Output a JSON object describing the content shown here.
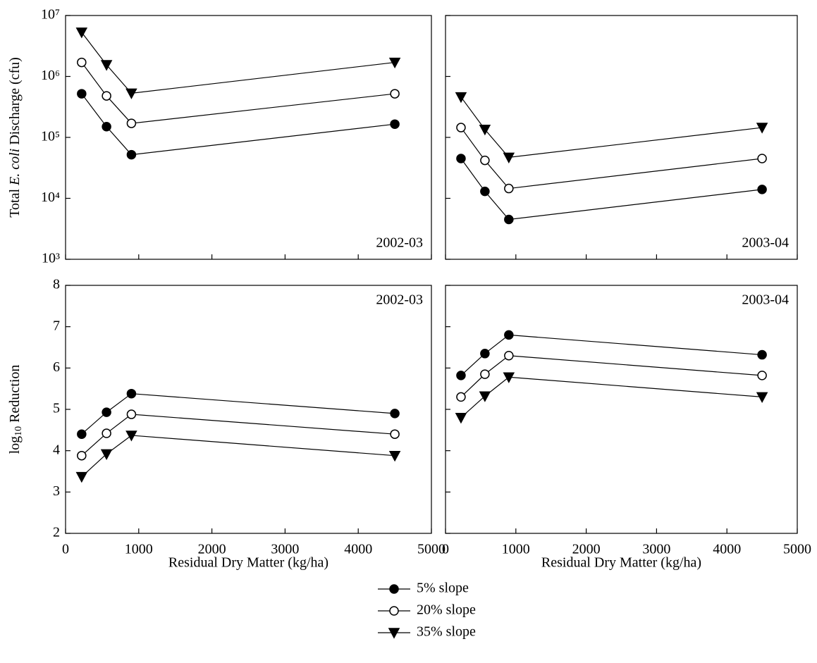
{
  "chart_data": [
    {
      "type": "line",
      "log_y": true,
      "annotation": "2002-03",
      "annotation_corner": "lower right",
      "ylabel": [
        "Total ",
        "E. coli",
        " Discharge (cfu)"
      ],
      "show_xtick_labels": false,
      "show_ytick_labels": true,
      "x": [
        220,
        560,
        900,
        4500
      ],
      "xlim": [
        0,
        5000
      ],
      "xticks": [
        0,
        1000,
        2000,
        3000,
        4000,
        5000
      ],
      "ylim": [
        1000,
        10000000
      ],
      "yticks": [
        {
          "value": 1000,
          "label": "10³"
        },
        {
          "value": 10000,
          "label": "10⁴"
        },
        {
          "value": 100000,
          "label": "10⁵"
        },
        {
          "value": 1000000,
          "label": "10⁶"
        },
        {
          "value": 10000000,
          "label": "10⁷"
        }
      ],
      "series": [
        {
          "name": "5% slope",
          "color": "#000000",
          "marker": "circle",
          "fill": "#000000",
          "values": [
            520000,
            150000,
            52000,
            165000
          ]
        },
        {
          "name": "20% slope",
          "color": "#000000",
          "marker": "circle",
          "fill": "#ffffff",
          "values": [
            1700000,
            480000,
            170000,
            520000
          ]
        },
        {
          "name": "35% slope",
          "color": "#000000",
          "marker": "triangle-down",
          "fill": "#000000",
          "values": [
            5300000,
            1550000,
            530000,
            1700000
          ]
        }
      ]
    },
    {
      "type": "line",
      "log_y": true,
      "annotation": "2003-04",
      "annotation_corner": "lower right",
      "show_xtick_labels": false,
      "show_ytick_labels": false,
      "x": [
        220,
        560,
        900,
        4500
      ],
      "xlim": [
        0,
        5000
      ],
      "xticks": [
        0,
        1000,
        2000,
        3000,
        4000,
        5000
      ],
      "ylim": [
        1000,
        10000000
      ],
      "yticks": [
        1000,
        10000,
        100000,
        1000000,
        10000000
      ],
      "series": [
        {
          "color": "#000000",
          "marker": "circle",
          "fill": "#000000",
          "values": [
            45000,
            13000,
            4500,
            14000
          ]
        },
        {
          "color": "#000000",
          "marker": "circle",
          "fill": "#ffffff",
          "values": [
            145000,
            42000,
            14500,
            45000
          ]
        },
        {
          "color": "#000000",
          "marker": "triangle-down",
          "fill": "#000000",
          "values": [
            460000,
            135000,
            47000,
            145000
          ]
        }
      ]
    },
    {
      "type": "line",
      "log_y": false,
      "annotation": "2002-03",
      "annotation_corner": "upper right",
      "ylabel": [
        "log",
        "10",
        " Reduction"
      ],
      "xlabel": "Residual Dry Matter (kg/ha)",
      "show_xtick_labels": true,
      "show_ytick_labels": true,
      "x": [
        220,
        560,
        900,
        4500
      ],
      "xlim": [
        0,
        5000
      ],
      "xticks": [
        0,
        1000,
        2000,
        3000,
        4000,
        5000
      ],
      "ylim": [
        2,
        8
      ],
      "yticks": [
        2,
        3,
        4,
        5,
        6,
        7,
        8
      ],
      "series": [
        {
          "color": "#000000",
          "marker": "circle",
          "fill": "#000000",
          "values": [
            4.4,
            4.93,
            5.38,
            4.9
          ]
        },
        {
          "color": "#000000",
          "marker": "circle",
          "fill": "#ffffff",
          "values": [
            3.88,
            4.42,
            4.88,
            4.4
          ]
        },
        {
          "color": "#000000",
          "marker": "triangle-down",
          "fill": "#000000",
          "values": [
            3.37,
            3.92,
            4.37,
            3.88
          ]
        }
      ]
    },
    {
      "type": "line",
      "log_y": false,
      "annotation": "2003-04",
      "annotation_corner": "upper right",
      "xlabel": "Residual Dry Matter (kg/ha)",
      "show_xtick_labels": true,
      "show_ytick_labels": false,
      "x": [
        220,
        560,
        900,
        4500
      ],
      "xlim": [
        0,
        5000
      ],
      "xticks": [
        0,
        1000,
        2000,
        3000,
        4000,
        5000
      ],
      "ylim": [
        2,
        8
      ],
      "yticks": [
        2,
        3,
        4,
        5,
        6,
        7,
        8
      ],
      "series": [
        {
          "color": "#000000",
          "marker": "circle",
          "fill": "#000000",
          "values": [
            5.82,
            6.35,
            6.8,
            6.32
          ]
        },
        {
          "color": "#000000",
          "marker": "circle",
          "fill": "#ffffff",
          "values": [
            5.3,
            5.85,
            6.3,
            5.82
          ]
        },
        {
          "color": "#000000",
          "marker": "triangle-down",
          "fill": "#000000",
          "values": [
            4.8,
            5.32,
            5.78,
            5.3
          ]
        }
      ]
    }
  ]
}
